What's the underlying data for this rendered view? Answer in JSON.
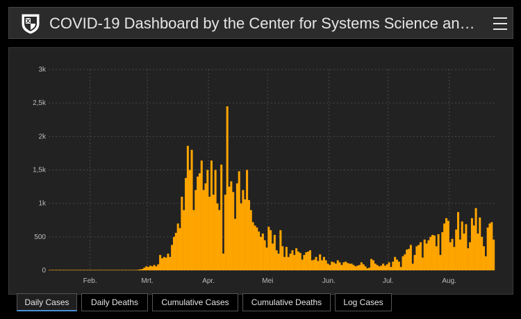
{
  "header": {
    "title": "COVID-19 Dashboard by the Center for Systems Science an…",
    "logo_icon": "university-shield-icon",
    "menu_icon": "hamburger-menu-icon"
  },
  "tabs": [
    {
      "label": "Daily Cases",
      "active": true
    },
    {
      "label": "Daily Deaths",
      "active": false
    },
    {
      "label": "Cumulative Cases",
      "active": false
    },
    {
      "label": "Cumulative Deaths",
      "active": false
    },
    {
      "label": "Log Cases",
      "active": false
    }
  ],
  "colors": {
    "bar": "#ffa500",
    "grid": "#4a4a4a"
  },
  "chart_data": {
    "type": "bar",
    "title": "Daily Cases",
    "xlabel": "",
    "ylabel": "",
    "ylim": [
      0,
      3000
    ],
    "y_ticks": [
      {
        "value": 0,
        "label": "0"
      },
      {
        "value": 500,
        "label": "500"
      },
      {
        "value": 1000,
        "label": "1k"
      },
      {
        "value": 1500,
        "label": "1,5k"
      },
      {
        "value": 2000,
        "label": "2k"
      },
      {
        "value": 2500,
        "label": "2,5k"
      },
      {
        "value": 3000,
        "label": "3k"
      }
    ],
    "x_ticks": [
      {
        "day": 21,
        "label": "Feb."
      },
      {
        "day": 50,
        "label": "Mrt."
      },
      {
        "day": 81,
        "label": "Apr."
      },
      {
        "day": 111,
        "label": "Mei"
      },
      {
        "day": 142,
        "label": "Jun."
      },
      {
        "day": 172,
        "label": "Jul."
      },
      {
        "day": 203,
        "label": "Aug."
      }
    ],
    "start_date": "2020-01-22",
    "values": [
      0,
      0,
      0,
      0,
      0,
      0,
      0,
      0,
      0,
      0,
      0,
      0,
      0,
      0,
      0,
      0,
      0,
      0,
      0,
      0,
      0,
      0,
      0,
      0,
      0,
      0,
      0,
      0,
      0,
      0,
      0,
      0,
      0,
      0,
      0,
      0,
      0,
      0,
      0,
      0,
      0,
      0,
      0,
      0,
      0,
      10,
      15,
      20,
      40,
      60,
      50,
      70,
      60,
      80,
      60,
      90,
      230,
      180,
      200,
      190,
      250,
      200,
      380,
      500,
      560,
      700,
      630,
      1100,
      900,
      1380,
      1860,
      1500,
      1800,
      900,
      1200,
      1400,
      1450,
      1640,
      1200,
      1300,
      1500,
      1100,
      1640,
      1130,
      1500,
      1000,
      900,
      1580,
      250,
      1130,
      2450,
      1250,
      1330,
      1170,
      770,
      1300,
      1480,
      1000,
      1200,
      1060,
      1500,
      1050,
      900,
      720,
      670,
      640,
      580,
      500,
      550,
      450,
      340,
      650,
      600,
      400,
      530,
      300,
      250,
      600,
      360,
      200,
      350,
      200,
      250,
      300,
      230,
      330,
      280,
      260,
      160,
      230,
      270,
      280,
      300,
      150,
      160,
      200,
      140,
      240,
      150,
      200,
      150,
      100,
      80,
      130,
      120,
      100,
      150,
      120,
      80,
      120,
      130,
      110,
      100,
      100,
      80,
      60,
      70,
      80,
      120,
      90,
      60,
      30,
      40,
      170,
      150,
      100,
      80,
      60,
      70,
      100,
      70,
      90,
      120,
      50,
      130,
      200,
      160,
      130,
      50,
      210,
      240,
      310,
      320,
      380,
      100,
      230,
      360,
      380,
      420,
      190,
      460,
      400,
      450,
      500,
      530,
      520,
      360,
      540,
      230,
      570,
      700,
      780,
      740,
      420,
      470,
      350,
      610,
      870,
      460,
      730,
      550,
      690,
      330,
      420,
      780,
      670,
      930,
      550,
      790,
      500,
      360,
      210,
      640,
      700,
      720,
      460
    ],
    "values_note": "daily new cases from 22 Jan to ~15 Aug, estimated from bar heights"
  }
}
